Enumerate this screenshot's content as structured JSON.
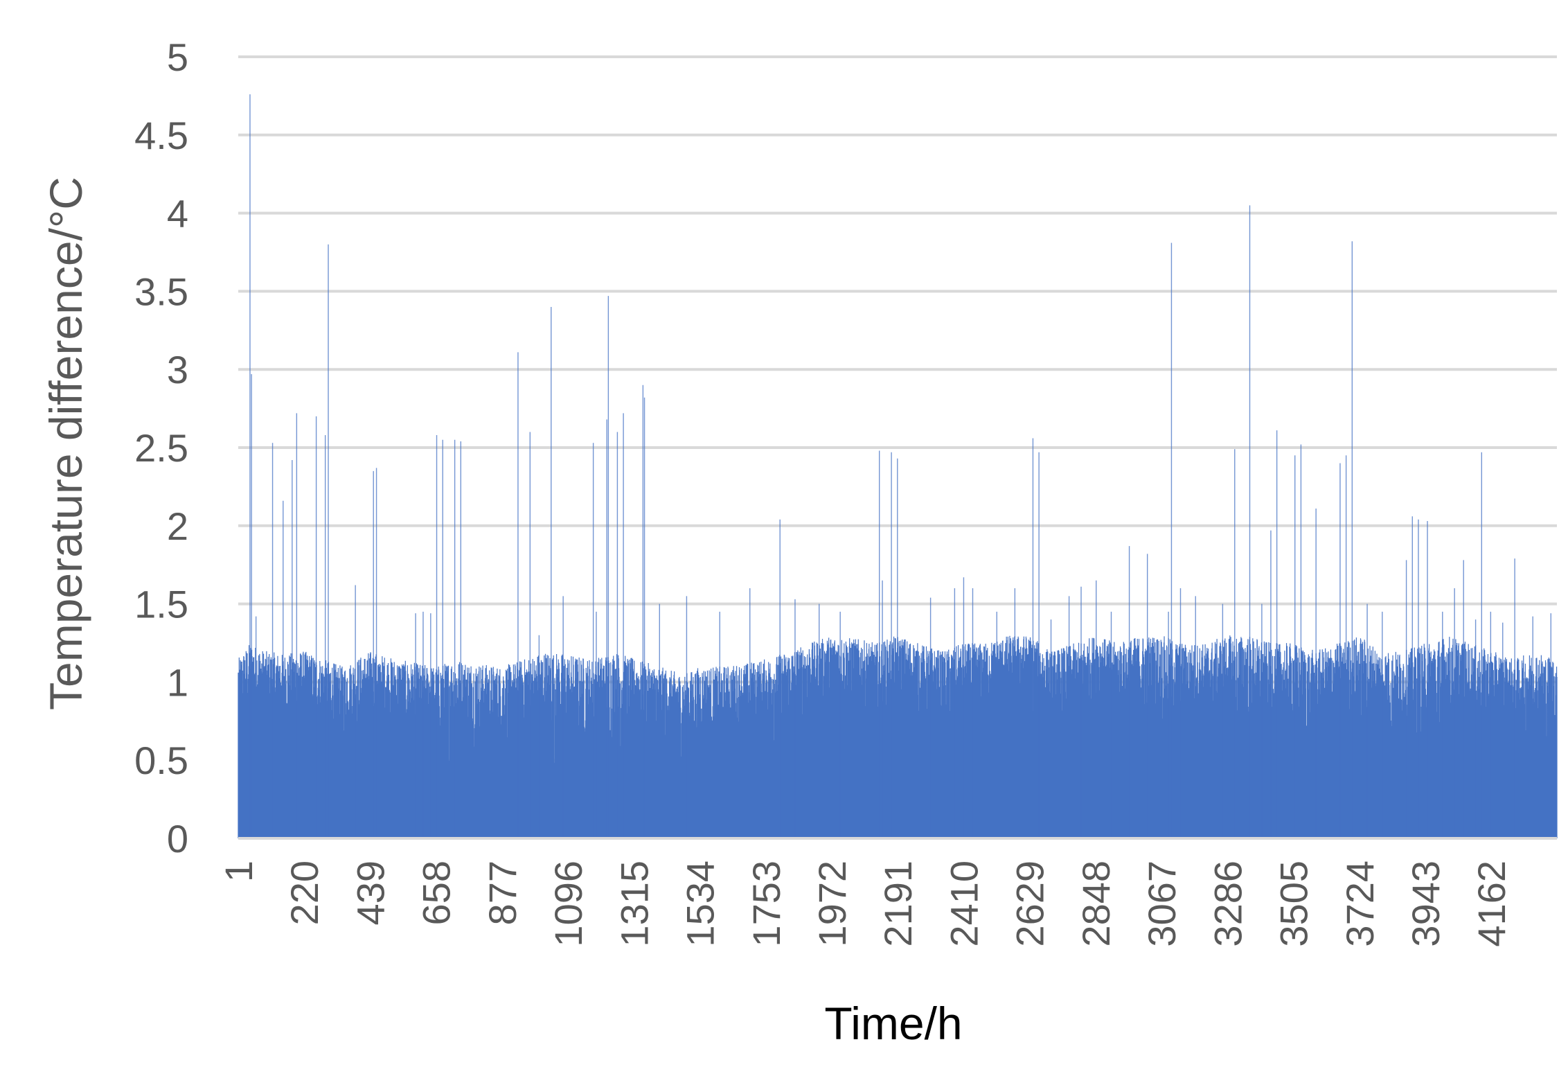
{
  "chart_data": {
    "type": "bar",
    "xlabel": "Time/h",
    "ylabel": "Temperature difference/°C",
    "ylim": [
      0,
      5
    ],
    "yticks": [
      "0",
      "0.5",
      "1",
      "1.5",
      "2",
      "2.5",
      "3",
      "3.5",
      "4",
      "4.5",
      "5"
    ],
    "xlim": [
      1,
      4380
    ],
    "xticks": [
      "1",
      "220",
      "439",
      "658",
      "877",
      "1096",
      "1315",
      "1534",
      "1753",
      "1972",
      "2191",
      "2410",
      "2629",
      "2848",
      "3067",
      "3286",
      "3505",
      "3724",
      "3943",
      "4162"
    ],
    "grid": true,
    "legend": "none",
    "bar_color": "#4472C4",
    "envelope_note": "approximate hourly values; dense series",
    "envelope": {
      "x": [
        1,
        40,
        90,
        150,
        220,
        280,
        350,
        439,
        520,
        600,
        658,
        720,
        800,
        877,
        950,
        1020,
        1096,
        1180,
        1250,
        1315,
        1400,
        1480,
        1534,
        1600,
        1680,
        1753,
        1830,
        1900,
        1972,
        2050,
        2120,
        2191,
        2260,
        2340,
        2410,
        2480,
        2560,
        2629,
        2700,
        2780,
        2848,
        2920,
        3000,
        3067,
        3140,
        3210,
        3286,
        3360,
        3430,
        3505,
        3580,
        3650,
        3724,
        3800,
        3870,
        3943,
        4020,
        4090,
        4162,
        4240,
        4310,
        4380
      ],
      "high": [
        1.15,
        1.25,
        1.2,
        1.18,
        1.2,
        1.15,
        1.1,
        1.2,
        1.15,
        1.12,
        1.1,
        1.15,
        1.12,
        1.1,
        1.15,
        1.2,
        1.18,
        1.15,
        1.2,
        1.15,
        1.1,
        1.05,
        1.1,
        1.1,
        1.12,
        1.15,
        1.2,
        1.25,
        1.3,
        1.28,
        1.25,
        1.3,
        1.25,
        1.2,
        1.25,
        1.25,
        1.3,
        1.3,
        1.2,
        1.25,
        1.3,
        1.25,
        1.3,
        1.3,
        1.25,
        1.25,
        1.3,
        1.3,
        1.25,
        1.25,
        1.2,
        1.25,
        1.3,
        1.2,
        1.2,
        1.25,
        1.3,
        1.25,
        1.2,
        1.15,
        1.2,
        1.15
      ],
      "low": [
        0.5,
        0.6,
        0.5,
        0.55,
        0.6,
        0.5,
        0.45,
        0.5,
        0.45,
        0.4,
        0.45,
        0.4,
        0.45,
        0.4,
        0.45,
        0.4,
        0.35,
        0.4,
        0.4,
        0.45,
        0.4,
        0.35,
        0.4,
        0.4,
        0.45,
        0.45,
        0.55,
        0.6,
        0.65,
        0.65,
        0.6,
        0.6,
        0.55,
        0.5,
        0.55,
        0.6,
        0.7,
        0.7,
        0.45,
        0.45,
        0.7,
        0.6,
        0.5,
        0.45,
        0.45,
        0.5,
        0.5,
        0.45,
        0.45,
        0.4,
        0.45,
        0.5,
        0.45,
        0.45,
        0.45,
        0.4,
        0.45,
        0.5,
        0.5,
        0.45,
        0.45,
        0.4
      ]
    },
    "dips": [
      [
        150,
        0.24
      ],
      [
        300,
        0.23
      ],
      [
        470,
        0.46
      ],
      [
        590,
        0.3
      ],
      [
        700,
        0.1
      ],
      [
        750,
        0.3
      ],
      [
        820,
        0.1
      ],
      [
        900,
        0.27
      ],
      [
        980,
        0.3
      ],
      [
        1050,
        0.2
      ],
      [
        1130,
        0.35
      ],
      [
        1270,
        0.34
      ],
      [
        1420,
        0.34
      ],
      [
        1560,
        0.25
      ],
      [
        1700,
        0.4
      ],
      [
        1780,
        0.32
      ],
      [
        2480,
        0.6
      ],
      [
        2560,
        0.52
      ],
      [
        2640,
        0.4
      ],
      [
        2860,
        0.19
      ],
      [
        2980,
        0.42
      ],
      [
        3100,
        0.05
      ],
      [
        3220,
        0.46
      ],
      [
        3320,
        0.41
      ],
      [
        3480,
        0.26
      ],
      [
        3560,
        0.34
      ],
      [
        3740,
        0.15
      ],
      [
        3830,
        0.28
      ],
      [
        3900,
        0.21
      ],
      [
        3980,
        0.19
      ],
      [
        4120,
        0.5
      ],
      [
        4330,
        0.23
      ]
    ],
    "spikes": [
      [
        40,
        4.76
      ],
      [
        45,
        2.97
      ],
      [
        60,
        1.42
      ],
      [
        115,
        2.53
      ],
      [
        150,
        2.16
      ],
      [
        180,
        2.42
      ],
      [
        195,
        2.72
      ],
      [
        260,
        2.7
      ],
      [
        290,
        2.58
      ],
      [
        300,
        3.8
      ],
      [
        390,
        1.62
      ],
      [
        450,
        2.35
      ],
      [
        460,
        2.37
      ],
      [
        590,
        1.44
      ],
      [
        615,
        1.45
      ],
      [
        640,
        1.44
      ],
      [
        660,
        2.58
      ],
      [
        680,
        2.55
      ],
      [
        720,
        2.55
      ],
      [
        740,
        2.54
      ],
      [
        930,
        3.11
      ],
      [
        970,
        2.6
      ],
      [
        1000,
        1.3
      ],
      [
        1040,
        3.4
      ],
      [
        1080,
        1.55
      ],
      [
        1180,
        2.53
      ],
      [
        1190,
        1.45
      ],
      [
        1225,
        2.68
      ],
      [
        1230,
        3.47
      ],
      [
        1260,
        2.6
      ],
      [
        1280,
        2.72
      ],
      [
        1345,
        2.9
      ],
      [
        1350,
        2.82
      ],
      [
        1400,
        1.5
      ],
      [
        1490,
        1.55
      ],
      [
        1600,
        1.45
      ],
      [
        1700,
        1.6
      ],
      [
        1800,
        2.04
      ],
      [
        1850,
        1.53
      ],
      [
        1930,
        1.5
      ],
      [
        2000,
        1.45
      ],
      [
        2130,
        2.48
      ],
      [
        2140,
        1.65
      ],
      [
        2170,
        2.47
      ],
      [
        2190,
        2.43
      ],
      [
        2300,
        1.54
      ],
      [
        2380,
        1.6
      ],
      [
        2410,
        1.67
      ],
      [
        2440,
        1.6
      ],
      [
        2520,
        1.45
      ],
      [
        2580,
        1.6
      ],
      [
        2640,
        2.56
      ],
      [
        2660,
        2.47
      ],
      [
        2700,
        1.4
      ],
      [
        2760,
        1.55
      ],
      [
        2800,
        1.61
      ],
      [
        2850,
        1.65
      ],
      [
        2900,
        1.45
      ],
      [
        2960,
        1.87
      ],
      [
        3020,
        1.82
      ],
      [
        3090,
        1.45
      ],
      [
        3100,
        3.81
      ],
      [
        3130,
        1.6
      ],
      [
        3180,
        1.55
      ],
      [
        3270,
        1.5
      ],
      [
        3310,
        2.49
      ],
      [
        3360,
        4.05
      ],
      [
        3400,
        1.5
      ],
      [
        3430,
        1.97
      ],
      [
        3450,
        2.61
      ],
      [
        3510,
        2.45
      ],
      [
        3530,
        2.52
      ],
      [
        3580,
        2.11
      ],
      [
        3660,
        2.4
      ],
      [
        3680,
        2.45
      ],
      [
        3700,
        3.82
      ],
      [
        3750,
        1.5
      ],
      [
        3800,
        1.45
      ],
      [
        3880,
        1.78
      ],
      [
        3900,
        2.06
      ],
      [
        3920,
        2.04
      ],
      [
        3950,
        2.03
      ],
      [
        4000,
        1.45
      ],
      [
        4040,
        1.6
      ],
      [
        4070,
        1.78
      ],
      [
        4110,
        1.4
      ],
      [
        4130,
        2.47
      ],
      [
        4160,
        1.45
      ],
      [
        4200,
        1.38
      ],
      [
        4240,
        1.79
      ],
      [
        4300,
        1.42
      ],
      [
        4360,
        1.44
      ]
    ]
  }
}
